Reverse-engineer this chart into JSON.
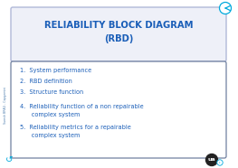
{
  "title_line1": "RELIABILITY BLOCK DIAGRAM",
  "title_line2": "(RBD)",
  "title_color": "#1a5eb8",
  "title_box_edge": "#b0b8d8",
  "title_box_face": "#eef0f8",
  "item_color": "#1a5eb8",
  "content_box_edge": "#7080a0",
  "content_box_face": "#ffffff",
  "bg_color": "#ffffff",
  "sidebar_text": "Suresh BRAG - Capgemini",
  "sidebar_color": "#5080b0",
  "nav_arrow_color": "#00aadd",
  "logo_bg": "#222222",
  "logo_fg": "#ffffff"
}
